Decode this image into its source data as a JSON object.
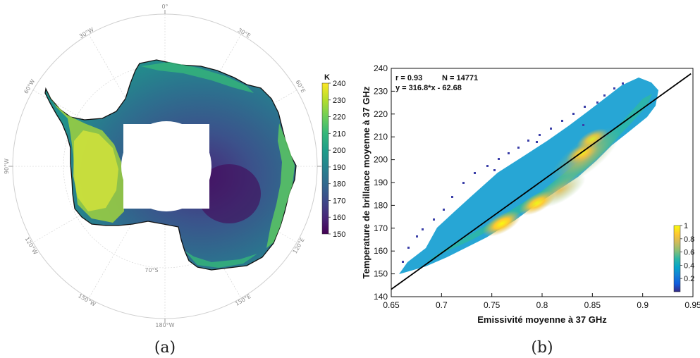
{
  "captions": {
    "a": "(a)",
    "b": "(b)"
  },
  "map": {
    "polar_labels": {
      "top": "0°",
      "tl": "30°W",
      "tr": "30°E",
      "ul": "60°W",
      "ur": "60°E",
      "l": "90°W",
      "r": "90°E",
      "ll": "120°W",
      "lr": "120°E",
      "bl": "150°W",
      "br": "150°E",
      "bottom": "180°W",
      "lat": "70°S"
    },
    "colorbar": {
      "unit": "K",
      "ticks": [
        "240",
        "230",
        "220",
        "210",
        "200",
        "190",
        "180",
        "170",
        "160",
        "150"
      ],
      "colors": [
        "#440154",
        "#482878",
        "#3e4989",
        "#31688e",
        "#26828e",
        "#1f9e89",
        "#35b779",
        "#6ece58",
        "#b5de2b",
        "#fde725"
      ]
    }
  },
  "chart_data": {
    "type": "scatter",
    "title": "",
    "xlabel": "Emissivité moyenne à 37 GHz",
    "ylabel": "Temperature de brillance moyenne à 37 GHz",
    "xlim": [
      0.65,
      0.95
    ],
    "ylim": [
      140,
      240
    ],
    "xticks": [
      "0.65",
      "0.7",
      "0.75",
      "0.8",
      "0.85",
      "0.9",
      "0.95"
    ],
    "yticks": [
      "140",
      "150",
      "160",
      "170",
      "180",
      "190",
      "200",
      "210",
      "220",
      "230",
      "240"
    ],
    "stats": {
      "r": "r = 0.93",
      "n": "N = 14771",
      "fit": "y = 316.8*x - 62.68"
    },
    "fit_line": {
      "slope": 316.8,
      "intercept": -62.68,
      "x_from": 0.65,
      "x_to": 0.948
    },
    "density_peaks": [
      {
        "x": 0.76,
        "y": 172,
        "density": 1.0
      },
      {
        "x": 0.795,
        "y": 181,
        "density": 0.9
      },
      {
        "x": 0.84,
        "y": 203,
        "density": 0.7
      },
      {
        "x": 0.85,
        "y": 209,
        "density": 0.65
      }
    ],
    "colorbar": {
      "ticks": [
        "1",
        "0.8",
        "0.6",
        "0.4",
        "0.2"
      ],
      "colors": [
        "#352a87",
        "#0f5cdd",
        "#1481d6",
        "#06a4ca",
        "#2eb7a4",
        "#87bf77",
        "#d1bb59",
        "#fec832",
        "#f9fb0e"
      ]
    },
    "grid": false
  }
}
